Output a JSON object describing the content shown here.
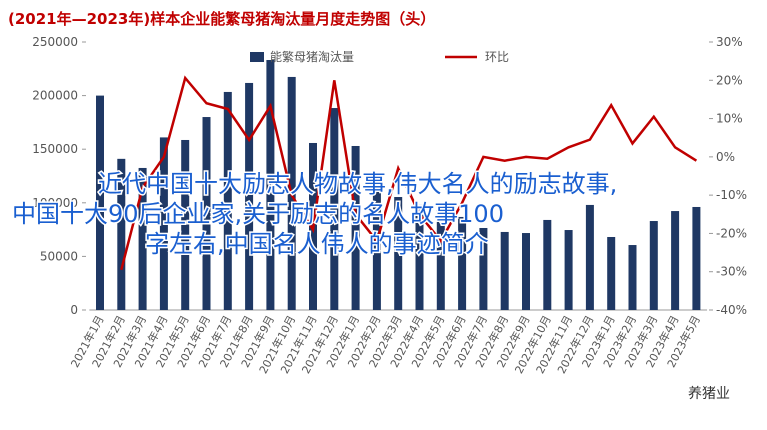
{
  "chart_data": {
    "type": "bar",
    "title": "(2021年—2023年)样本企业能繁母猪淘汰量月度走势图（头）",
    "categories": [
      "2021年1月",
      "2021年2月",
      "2021年3月",
      "2021年4月",
      "2021年5月",
      "2021年6月",
      "2021年7月",
      "2021年8月",
      "2021年9月",
      "2021年10月",
      "2021年11月",
      "2021年12月",
      "2022年1月",
      "2022年2月",
      "2022年3月",
      "2022年4月",
      "2022年5月",
      "2022年6月",
      "2022年7月",
      "2022年8月",
      "2022年9月",
      "2022年10月",
      "2022年11月",
      "2022年12月",
      "2023年1月",
      "2023年2月",
      "2023年3月",
      "2023年4月",
      "2023年5月"
    ],
    "series": [
      {
        "name": "能繁母猪淘汰量",
        "type": "bar",
        "color": "#1f3864",
        "values": [
          200000,
          141000,
          132500,
          161000,
          158600,
          180000,
          203400,
          211800,
          233200,
          217400,
          155800,
          188400,
          153000,
          116600,
          105400,
          98000,
          93300,
          86800,
          76500,
          72800,
          71800,
          84000,
          74600,
          98000,
          68100,
          60600,
          83000,
          92300,
          96100
        ]
      },
      {
        "name": "环比",
        "type": "line",
        "axis": "y2",
        "color": "#c00000",
        "values": [
          null,
          -29.5,
          -8,
          0,
          20.6,
          14,
          12.5,
          4.4,
          13.3,
          -10,
          -19,
          20,
          -15,
          -22,
          -3,
          -15,
          -22,
          -12,
          0,
          -1,
          0,
          -0.5,
          2.5,
          4.5,
          13.5,
          3.5,
          10.5,
          2.5,
          -1
        ]
      }
    ],
    "ylim": [
      0,
      250000
    ],
    "yticks": [
      0,
      50000,
      100000,
      150000,
      200000,
      250000
    ],
    "y2lim": [
      -40,
      30
    ],
    "y2ticks": [
      {
        "value": -40,
        "label": "-40%"
      },
      {
        "value": -30,
        "label": "-30%"
      },
      {
        "value": -20,
        "label": "-20%"
      },
      {
        "value": -10,
        "label": "-10%"
      },
      {
        "value": 0,
        "label": "0%"
      },
      {
        "value": 10,
        "label": "10%"
      },
      {
        "value": 20,
        "label": "20%"
      },
      {
        "value": 30,
        "label": "30%"
      }
    ],
    "grid": false,
    "legend": "top",
    "annotations": [
      "近代中国十大励志人物故事,伟大名人的励志故事,",
      "中国十大90后企业家,关于励志的名人故事100",
      "字左右,中国名人伟人的事迹简介"
    ],
    "watermark": "养猪业"
  }
}
